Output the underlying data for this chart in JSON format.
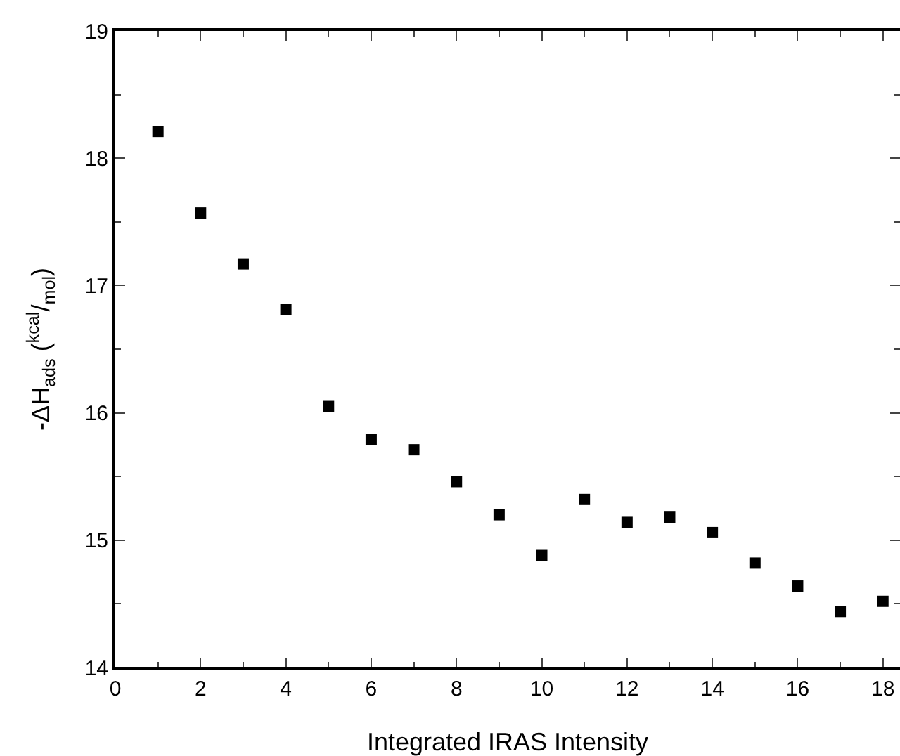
{
  "chart_data": {
    "type": "scatter",
    "xlabel": "Integrated IRAS Intensity",
    "ylabel": "-ΔH$_{ads}$ ($^{kcal}$/$_{mol}$)",
    "x": [
      1,
      2,
      3,
      4,
      5,
      6,
      7,
      8,
      9,
      10,
      11,
      12,
      13,
      14,
      15,
      16,
      17,
      18
    ],
    "series": [
      {
        "color": "#000000",
        "values": [
          18.21,
          17.57,
          17.17,
          16.81,
          16.05,
          15.79,
          15.71,
          15.46,
          15.2,
          14.88,
          15.32,
          15.14,
          15.18,
          15.06,
          14.82,
          14.64,
          14.44,
          14.52
        ]
      }
    ],
    "xlim": [
      0,
      18.4
    ],
    "xticks": [
      0,
      2,
      4,
      6,
      8,
      10,
      12,
      14,
      16,
      18
    ],
    "ylim": [
      14,
      19
    ],
    "yticks": [
      14,
      15,
      16,
      17,
      18,
      19
    ],
    "marker": "square"
  }
}
